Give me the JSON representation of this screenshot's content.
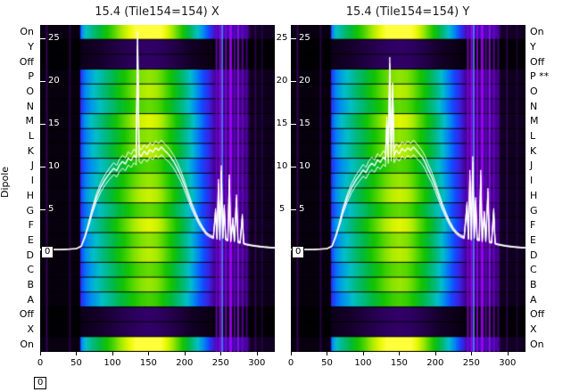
{
  "chart_data": {
    "type": "heatmap",
    "ylabel": "Dipole",
    "zero_label": "0",
    "corner_label": "0",
    "x_ticks": [
      "0",
      "50",
      "100",
      "150",
      "200",
      "250",
      "300"
    ],
    "x_tick_values": [
      0,
      50,
      100,
      150,
      200,
      250,
      300
    ],
    "y_ticks": [
      "25",
      "20",
      "15",
      "10",
      "5"
    ],
    "y_tick_values": [
      25,
      20,
      15,
      10,
      5
    ],
    "x_range": [
      0,
      325
    ],
    "value_axis": {
      "min": 0,
      "max": 27,
      "ticks": [
        0,
        5,
        10,
        15,
        20,
        25
      ]
    },
    "rows_left": [
      "On",
      "Y",
      "Off",
      "P",
      "O",
      "N",
      "M",
      "L",
      "K",
      "J",
      "I",
      "H",
      "G",
      "F",
      "E",
      "D",
      "C",
      "B",
      "A",
      "Off",
      "X",
      "On"
    ],
    "rows_right": [
      "On",
      "Y",
      "Off",
      "P **",
      "O",
      "N",
      "M",
      "L",
      "K",
      "J",
      "I",
      "H",
      "G",
      "F",
      "E",
      "D",
      "C",
      "B",
      "A",
      "Off",
      "X",
      "On"
    ],
    "row_gains": [
      1.2,
      0.12,
      0.12,
      0.95,
      1.0,
      0.9,
      1.05,
      0.95,
      1.0,
      0.88,
      0.96,
      1.02,
      0.9,
      1.05,
      0.95,
      1.0,
      0.9,
      0.96,
      0.86,
      0.12,
      0.12,
      1.2
    ],
    "intensity_profile": [
      [
        0,
        0.02
      ],
      [
        54,
        0.02
      ],
      [
        56,
        0.3
      ],
      [
        62,
        0.38
      ],
      [
        70,
        0.44
      ],
      [
        80,
        0.5
      ],
      [
        90,
        0.57
      ],
      [
        100,
        0.63
      ],
      [
        110,
        0.7
      ],
      [
        120,
        0.76
      ],
      [
        130,
        0.82
      ],
      [
        140,
        0.86
      ],
      [
        150,
        0.88
      ],
      [
        160,
        0.86
      ],
      [
        168,
        0.82
      ],
      [
        176,
        0.76
      ],
      [
        184,
        0.7
      ],
      [
        192,
        0.63
      ],
      [
        200,
        0.56
      ],
      [
        208,
        0.48
      ],
      [
        216,
        0.4
      ],
      [
        224,
        0.33
      ],
      [
        232,
        0.26
      ],
      [
        238,
        0.19
      ],
      [
        242,
        0.15
      ],
      [
        286,
        0.13
      ],
      [
        291,
        0.05
      ],
      [
        325,
        0.04
      ]
    ],
    "colormap": [
      [
        0.0,
        0,
        0,
        0
      ],
      [
        0.06,
        20,
        0,
        40
      ],
      [
        0.14,
        70,
        0,
        150
      ],
      [
        0.22,
        60,
        30,
        220
      ],
      [
        0.3,
        20,
        70,
        255
      ],
      [
        0.38,
        0,
        140,
        240
      ],
      [
        0.46,
        0,
        190,
        200
      ],
      [
        0.54,
        0,
        185,
        130
      ],
      [
        0.62,
        0,
        185,
        60
      ],
      [
        0.7,
        20,
        195,
        0
      ],
      [
        0.78,
        90,
        215,
        0
      ],
      [
        0.86,
        170,
        235,
        0
      ],
      [
        0.93,
        230,
        248,
        0
      ],
      [
        1.0,
        255,
        255,
        60
      ]
    ],
    "line_offsets": [
      0,
      -0.9,
      0.8
    ],
    "panels": [
      {
        "title": "15.4 (Tile154=154) X",
        "streaks": [
          {
            "x": 8,
            "w": 2,
            "c": "#3a0060",
            "a": 0.9
          },
          {
            "x": 40,
            "w": 2,
            "c": "#2a0048",
            "a": 0.9
          },
          {
            "x": 243,
            "w": 2,
            "c": "#7700cc",
            "a": 0.8
          },
          {
            "x": 248,
            "w": 2,
            "c": "#9900ee",
            "a": 0.85
          },
          {
            "x": 251,
            "w": 2,
            "c": "#5577ff",
            "a": 0.9
          },
          {
            "x": 256,
            "w": 2,
            "c": "#8800dd",
            "a": 0.8
          },
          {
            "x": 262,
            "w": 3,
            "c": "#aa00ff",
            "a": 0.85
          },
          {
            "x": 268,
            "w": 2,
            "c": "#6600bb",
            "a": 0.8
          },
          {
            "x": 273,
            "w": 2,
            "c": "#9911ee",
            "a": 0.8
          },
          {
            "x": 279,
            "w": 2,
            "c": "#7700cc",
            "a": 0.75
          },
          {
            "x": 285,
            "w": 2,
            "c": "#550099",
            "a": 0.7
          },
          {
            "x": 297,
            "w": 2,
            "c": "#440077",
            "a": 0.6
          },
          {
            "x": 306,
            "w": 2,
            "c": "#330066",
            "a": 0.5
          }
        ],
        "line": [
          [
            0,
            0.3
          ],
          [
            30,
            0.3
          ],
          [
            50,
            0.4
          ],
          [
            57,
            0.7
          ],
          [
            62,
            1.8
          ],
          [
            67,
            3.2
          ],
          [
            72,
            4.8
          ],
          [
            78,
            6.4
          ],
          [
            84,
            7.6
          ],
          [
            90,
            8.5
          ],
          [
            96,
            9.2
          ],
          [
            102,
            9.8
          ],
          [
            106,
            9.5
          ],
          [
            110,
            10.2
          ],
          [
            114,
            10.6
          ],
          [
            118,
            10.3
          ],
          [
            122,
            11.0
          ],
          [
            126,
            10.7
          ],
          [
            130,
            11.3
          ],
          [
            133,
            11.0
          ],
          [
            135,
            25.0
          ],
          [
            137,
            11.5
          ],
          [
            140,
            11.2
          ],
          [
            144,
            11.8
          ],
          [
            148,
            11.4
          ],
          [
            152,
            12.0
          ],
          [
            156,
            11.7
          ],
          [
            160,
            12.2
          ],
          [
            164,
            11.9
          ],
          [
            168,
            12.3
          ],
          [
            172,
            11.9
          ],
          [
            176,
            11.6
          ],
          [
            180,
            11.2
          ],
          [
            185,
            10.6
          ],
          [
            190,
            9.8
          ],
          [
            195,
            8.9
          ],
          [
            200,
            7.8
          ],
          [
            205,
            6.6
          ],
          [
            210,
            5.4
          ],
          [
            215,
            4.4
          ],
          [
            220,
            3.5
          ],
          [
            225,
            2.8
          ],
          [
            230,
            2.2
          ],
          [
            235,
            1.9
          ],
          [
            240,
            1.7
          ],
          [
            243,
            4.8
          ],
          [
            245,
            1.6
          ],
          [
            247,
            8.0
          ],
          [
            249,
            1.5
          ],
          [
            251,
            9.5
          ],
          [
            253,
            1.7
          ],
          [
            255,
            5.2
          ],
          [
            257,
            1.5
          ],
          [
            260,
            1.4
          ],
          [
            262,
            8.5
          ],
          [
            264,
            1.3
          ],
          [
            267,
            3.8
          ],
          [
            269,
            1.3
          ],
          [
            272,
            6.3
          ],
          [
            274,
            1.2
          ],
          [
            277,
            1.1
          ],
          [
            280,
            4.2
          ],
          [
            282,
            1.0
          ],
          [
            286,
            0.9
          ],
          [
            292,
            0.8
          ],
          [
            300,
            0.7
          ],
          [
            310,
            0.6
          ],
          [
            325,
            0.5
          ]
        ]
      },
      {
        "title": "15.4 (Tile154=154) Y",
        "streaks": [
          {
            "x": 8,
            "w": 2,
            "c": "#3a0060",
            "a": 0.9
          },
          {
            "x": 40,
            "w": 2,
            "c": "#2a0048",
            "a": 0.9
          },
          {
            "x": 244,
            "w": 2,
            "c": "#8800dd",
            "a": 0.8
          },
          {
            "x": 249,
            "w": 2,
            "c": "#aa00ff",
            "a": 0.85
          },
          {
            "x": 252,
            "w": 2,
            "c": "#5577ff",
            "a": 0.9
          },
          {
            "x": 257,
            "w": 2,
            "c": "#9900ee",
            "a": 0.8
          },
          {
            "x": 263,
            "w": 3,
            "c": "#aa00ff",
            "a": 0.85
          },
          {
            "x": 269,
            "w": 2,
            "c": "#6600bb",
            "a": 0.8
          },
          {
            "x": 274,
            "w": 2,
            "c": "#9911ee",
            "a": 0.8
          },
          {
            "x": 280,
            "w": 2,
            "c": "#7700cc",
            "a": 0.75
          },
          {
            "x": 286,
            "w": 2,
            "c": "#550099",
            "a": 0.7
          },
          {
            "x": 298,
            "w": 2,
            "c": "#440077",
            "a": 0.6
          },
          {
            "x": 312,
            "w": 2,
            "c": "#330066",
            "a": 0.5
          }
        ],
        "line": [
          [
            0,
            0.3
          ],
          [
            30,
            0.3
          ],
          [
            50,
            0.4
          ],
          [
            57,
            0.7
          ],
          [
            62,
            1.8
          ],
          [
            67,
            3.2
          ],
          [
            72,
            4.8
          ],
          [
            78,
            6.3
          ],
          [
            84,
            7.5
          ],
          [
            90,
            8.4
          ],
          [
            96,
            9.1
          ],
          [
            100,
            9.6
          ],
          [
            104,
            9.3
          ],
          [
            108,
            10.0
          ],
          [
            112,
            10.4
          ],
          [
            116,
            10.1
          ],
          [
            120,
            10.8
          ],
          [
            124,
            10.5
          ],
          [
            128,
            11.1
          ],
          [
            131,
            10.8
          ],
          [
            133,
            15.0
          ],
          [
            135,
            11.2
          ],
          [
            137,
            22.0
          ],
          [
            139,
            11.5
          ],
          [
            141,
            19.0
          ],
          [
            143,
            11.3
          ],
          [
            146,
            11.9
          ],
          [
            150,
            11.5
          ],
          [
            154,
            12.1
          ],
          [
            158,
            11.8
          ],
          [
            162,
            12.2
          ],
          [
            166,
            11.9
          ],
          [
            170,
            12.3
          ],
          [
            174,
            11.9
          ],
          [
            178,
            11.5
          ],
          [
            182,
            11.1
          ],
          [
            186,
            10.5
          ],
          [
            190,
            9.7
          ],
          [
            195,
            8.8
          ],
          [
            200,
            7.7
          ],
          [
            205,
            6.5
          ],
          [
            210,
            5.3
          ],
          [
            215,
            4.3
          ],
          [
            220,
            3.4
          ],
          [
            225,
            2.7
          ],
          [
            230,
            2.2
          ],
          [
            235,
            1.9
          ],
          [
            240,
            1.7
          ],
          [
            244,
            5.5
          ],
          [
            246,
            1.6
          ],
          [
            248,
            9.0
          ],
          [
            250,
            1.5
          ],
          [
            252,
            10.5
          ],
          [
            254,
            1.7
          ],
          [
            256,
            6.0
          ],
          [
            258,
            1.5
          ],
          [
            261,
            1.4
          ],
          [
            263,
            9.0
          ],
          [
            265,
            1.3
          ],
          [
            268,
            4.5
          ],
          [
            270,
            1.3
          ],
          [
            273,
            7.0
          ],
          [
            275,
            1.2
          ],
          [
            278,
            1.1
          ],
          [
            281,
            4.8
          ],
          [
            283,
            1.0
          ],
          [
            287,
            0.9
          ],
          [
            293,
            0.8
          ],
          [
            300,
            0.7
          ],
          [
            310,
            0.6
          ],
          [
            325,
            0.5
          ]
        ]
      }
    ]
  }
}
